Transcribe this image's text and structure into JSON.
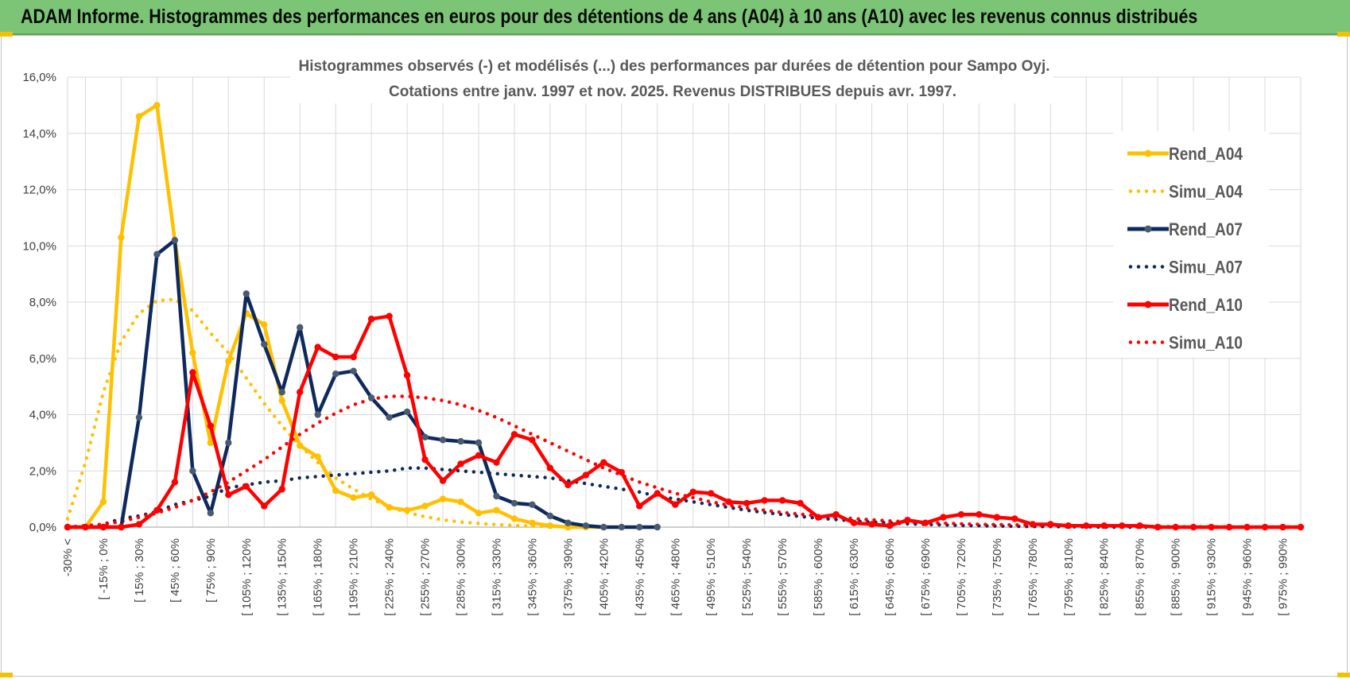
{
  "banner": {
    "title": "ADAM Informe. Histogrammes des performances en euros pour des détentions de 4 ans (A04) à 10 ans (A10) avec les revenus connus distribués"
  },
  "chart_data": {
    "type": "line",
    "title": "Histogrammes observés (-) et modélisés (...) des performances par durées de détention pour Sampo Oyj.",
    "subtitle": "Cotations entre janv. 1997 et nov. 2025. Revenus DISTRIBUES depuis avr. 1997.",
    "xlabel": "",
    "ylabel": "",
    "ylim": [
      0,
      16
    ],
    "y_ticks": [
      "0,0%",
      "2,0%",
      "4,0%",
      "6,0%",
      "8,0%",
      "10,0%",
      "12,0%",
      "14,0%",
      "16,0%"
    ],
    "grid": true,
    "legend_position": "right",
    "x_labels": [
      "-30% <",
      "[ -15% ; 0% ",
      "[ 15% ; 30% ",
      "[ 45% ; 60% ",
      "[ 75% ; 90% ",
      "[ 105% ; 120% ",
      "[ 135% ; 150% ",
      "[ 165% ; 180% ",
      "[ 195% ; 210% ",
      "[ 225% ; 240% ",
      "[ 255% ; 270% ",
      "[ 285% ; 300% ",
      "[ 315% ; 330% ",
      "[ 345% ; 360% ",
      "[ 375% ; 390% ",
      "[ 405% ; 420% ",
      "[ 435% ; 450% ",
      "[ 465% ; 480% ",
      "[ 495% ; 510% ",
      "[ 525% ; 540% ",
      "[ 555% ; 570% ",
      "[ 585% ; 600% ",
      "[ 615% ; 630% ",
      "[ 645% ; 660% ",
      "[ 675% ; 690% ",
      "[ 705% ; 720% ",
      "[ 735% ; 750% ",
      "[ 765% ; 780% ",
      "[ 795% ; 810% ",
      "[ 825% ; 840% ",
      "[ 855% ; 870% ",
      "[ 885% ; 900% ",
      "[ 915% ; 930% ",
      "[ 945% ; 960% ",
      "[ 975% ; 990% "
    ],
    "series": [
      {
        "name": "Rend_A04",
        "color": "#ffc000",
        "style": "solid",
        "marker": true,
        "values": [
          0.0,
          0.0,
          0.9,
          10.3,
          14.6,
          15.0,
          10.2,
          6.2,
          3.0,
          5.9,
          7.6,
          7.2,
          4.5,
          2.9,
          2.5,
          1.3,
          1.05,
          1.15,
          0.7,
          0.6,
          0.75,
          1.0,
          0.9,
          0.5,
          0.6,
          0.3,
          0.15,
          0.05,
          0.0,
          0.0,
          0.0
        ]
      },
      {
        "name": "Simu_A04",
        "color": "#ffc000",
        "style": "dotted",
        "marker": false,
        "values": [
          0.3,
          2.3,
          4.8,
          6.6,
          7.6,
          8.05,
          8.1,
          7.7,
          6.9,
          6.2,
          5.3,
          4.4,
          3.6,
          2.9,
          2.3,
          1.75,
          1.35,
          1.0,
          0.72,
          0.52,
          0.37,
          0.26,
          0.18,
          0.13,
          0.09,
          0.06,
          0.04,
          0.03,
          0.02,
          0.01,
          0.0
        ]
      },
      {
        "name": "Rend_A07",
        "color": "#0e2a5c",
        "style": "solid",
        "marker": true,
        "values": [
          0.0,
          0.0,
          0.0,
          0.0,
          3.9,
          9.7,
          10.2,
          2.0,
          0.5,
          3.0,
          8.3,
          6.5,
          4.8,
          7.1,
          4.0,
          5.45,
          5.55,
          4.6,
          3.9,
          4.1,
          3.2,
          3.1,
          3.05,
          3.0,
          1.1,
          0.85,
          0.8,
          0.4,
          0.15,
          0.05,
          0.0,
          0.0,
          0.0,
          0.0
        ]
      },
      {
        "name": "Simu_A07",
        "color": "#0e2a5c",
        "style": "dotted",
        "marker": false,
        "values": [
          0.0,
          0.05,
          0.1,
          0.3,
          0.4,
          0.55,
          0.8,
          0.95,
          1.1,
          1.4,
          1.5,
          1.6,
          1.65,
          1.75,
          1.8,
          1.85,
          1.9,
          1.95,
          2.0,
          2.1,
          2.1,
          2.05,
          2.0,
          1.95,
          1.9,
          1.85,
          1.8,
          1.75,
          1.65,
          1.55,
          1.45,
          1.35,
          1.25,
          1.1,
          1.0,
          0.9,
          0.8,
          0.7,
          0.6,
          0.52,
          0.45,
          0.38,
          0.32,
          0.27,
          0.22,
          0.18,
          0.15,
          0.12,
          0.1,
          0.08,
          0.06,
          0.05,
          0.04,
          0.03,
          0.02,
          0.02,
          0.01,
          0.01,
          0.0,
          0.0,
          0.0,
          0.0,
          0.0,
          0.0,
          0.0,
          0.0,
          0.0,
          0.0,
          0.0,
          0.0
        ]
      },
      {
        "name": "Rend_A10",
        "color": "#ff0000",
        "style": "solid",
        "marker": true,
        "values": []
      },
      {
        "name": "Simu_A10",
        "color": "#ff0000",
        "style": "dotted",
        "marker": false,
        "values": []
      }
    ]
  }
}
